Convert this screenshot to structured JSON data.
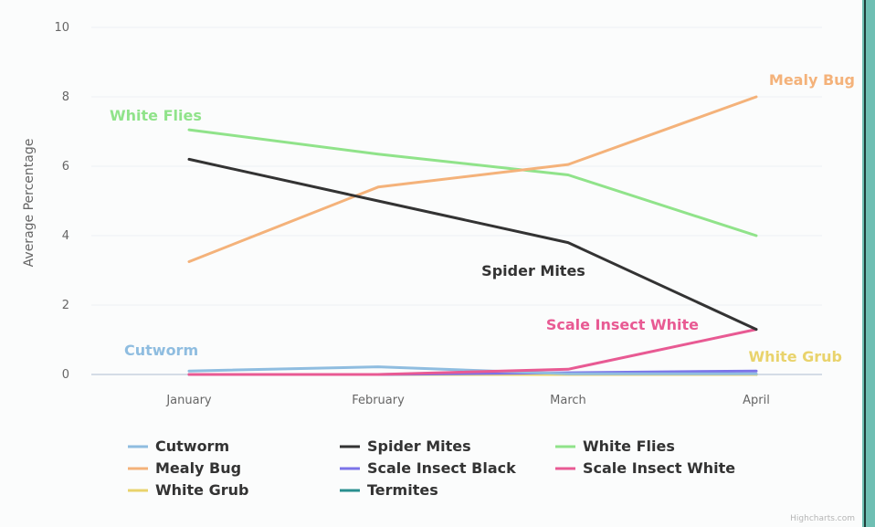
{
  "chart_data": {
    "type": "line",
    "title": "",
    "xlabel": "",
    "ylabel": "Average Percentage",
    "categories": [
      "January",
      "February",
      "March",
      "April"
    ],
    "ylim": [
      0,
      10
    ],
    "yticks": [
      0,
      2,
      4,
      6,
      8,
      10
    ],
    "grid": true,
    "legend_position": "bottom",
    "series": [
      {
        "name": "Cutworm",
        "color": "#8fbde0",
        "values": [
          0.1,
          0.22,
          0.02,
          0.02
        ],
        "label_anchor": "start"
      },
      {
        "name": "Spider Mites",
        "color": "#333333",
        "values": [
          6.2,
          5.0,
          3.8,
          1.3
        ],
        "label_anchor": "mid"
      },
      {
        "name": "White Flies",
        "color": "#90e38a",
        "values": [
          7.05,
          6.35,
          5.75,
          4.0
        ],
        "label_anchor": "start"
      },
      {
        "name": "Mealy Bug",
        "color": "#f4b27a",
        "values": [
          3.25,
          5.4,
          6.05,
          8.0
        ],
        "label_anchor": "end"
      },
      {
        "name": "Scale Insect Black",
        "color": "#7b73e8",
        "values": [
          0.0,
          0.0,
          0.05,
          0.1
        ],
        "label_anchor": "none"
      },
      {
        "name": "Scale Insect White",
        "color": "#e85a93",
        "values": [
          0.0,
          0.0,
          0.15,
          1.3
        ],
        "label_anchor": "end"
      },
      {
        "name": "White Grub",
        "color": "#e9d36c",
        "values": [
          0.0,
          0.0,
          0.0,
          0.0
        ],
        "label_anchor": "end"
      },
      {
        "name": "Termites",
        "color": "#2a8f8f",
        "values": [
          0.0,
          0.0,
          0.0,
          0.0
        ],
        "label_anchor": "none"
      }
    ],
    "credit": "Highcharts.com"
  }
}
